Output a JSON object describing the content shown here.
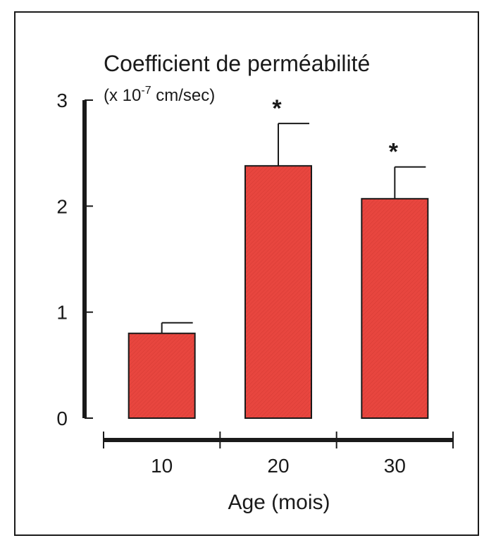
{
  "chart_data": {
    "type": "bar",
    "title": "Coefficient de perméabilité",
    "ylabel_unit_prefix": "(x 10",
    "ylabel_unit_exponent": "-7",
    "ylabel_unit_suffix": " cm/sec)",
    "xlabel": "Age (mois)",
    "categories": [
      "10",
      "20",
      "30"
    ],
    "values": [
      0.8,
      2.38,
      2.07
    ],
    "errors": [
      0.1,
      0.4,
      0.3
    ],
    "annotations": [
      "",
      "*",
      "*"
    ],
    "ylim": [
      0,
      3
    ],
    "yticks": [
      "0",
      "1",
      "2",
      "3"
    ],
    "bar_color": "#e8463f",
    "legend": "none",
    "grid": false
  }
}
